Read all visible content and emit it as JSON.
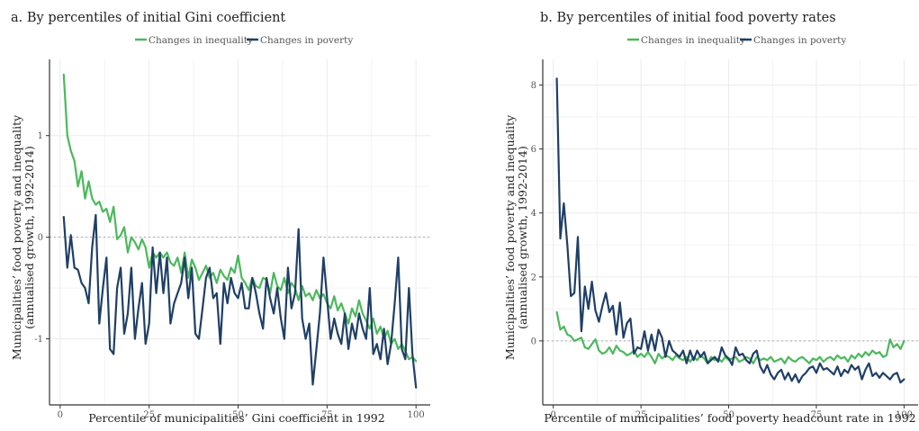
{
  "chart_data": [
    {
      "type": "line",
      "title": "a. By percentiles of initial Gini coefficient",
      "xlabel": "Percentile of municipalities’ Gini coefficient in 1992",
      "ylabel": [
        "Municipalities’ food poverty and inequality",
        "(annualised growth, 1992-2014)"
      ],
      "xlim": [
        -3,
        104
      ],
      "ylim": [
        -1.65,
        1.75
      ],
      "xticks": [
        0,
        25,
        50,
        75,
        100
      ],
      "xtick_labels": [
        "0",
        "25",
        "50",
        "75",
        "100"
      ],
      "yticks": [
        -1,
        0,
        1
      ],
      "ytick_labels": [
        "-1",
        "0",
        "1"
      ],
      "reference_line": 0,
      "grid": true,
      "legend_position": "top",
      "series": [
        {
          "name": "Changes in inequality",
          "color": "#4cb85c",
          "x": [
            1,
            2,
            3,
            4,
            5,
            6,
            7,
            8,
            9,
            10,
            11,
            12,
            13,
            14,
            15,
            16,
            17,
            18,
            19,
            20,
            21,
            22,
            23,
            24,
            25,
            26,
            27,
            28,
            29,
            30,
            31,
            32,
            33,
            34,
            35,
            36,
            37,
            38,
            39,
            40,
            41,
            42,
            43,
            44,
            45,
            46,
            47,
            48,
            49,
            50,
            51,
            52,
            53,
            54,
            55,
            56,
            57,
            58,
            59,
            60,
            61,
            62,
            63,
            64,
            65,
            66,
            67,
            68,
            69,
            70,
            71,
            72,
            73,
            74,
            75,
            76,
            77,
            78,
            79,
            80,
            81,
            82,
            83,
            84,
            85,
            86,
            87,
            88,
            89,
            90,
            91,
            92,
            93,
            94,
            95,
            96,
            97,
            98,
            99,
            100
          ],
          "y": [
            1.6,
            1.0,
            0.85,
            0.75,
            0.5,
            0.65,
            0.38,
            0.55,
            0.38,
            0.32,
            0.35,
            0.25,
            0.28,
            0.15,
            0.3,
            -0.02,
            0.02,
            0.1,
            -0.15,
            0.0,
            -0.05,
            -0.12,
            -0.02,
            -0.1,
            -0.3,
            -0.15,
            -0.2,
            -0.15,
            -0.2,
            -0.15,
            -0.25,
            -0.28,
            -0.2,
            -0.35,
            -0.15,
            -0.4,
            -0.22,
            -0.3,
            -0.42,
            -0.35,
            -0.28,
            -0.4,
            -0.35,
            -0.45,
            -0.32,
            -0.38,
            -0.42,
            -0.3,
            -0.35,
            -0.18,
            -0.4,
            -0.45,
            -0.52,
            -0.4,
            -0.48,
            -0.5,
            -0.4,
            -0.42,
            -0.55,
            -0.35,
            -0.48,
            -0.52,
            -0.4,
            -0.55,
            -0.45,
            -0.5,
            -0.62,
            -0.48,
            -0.58,
            -0.55,
            -0.62,
            -0.52,
            -0.6,
            -0.56,
            -0.65,
            -0.7,
            -0.58,
            -0.72,
            -0.65,
            -0.75,
            -0.85,
            -0.7,
            -0.78,
            -0.62,
            -0.75,
            -0.82,
            -0.9,
            -0.8,
            -0.95,
            -0.88,
            -1.0,
            -0.92,
            -1.05,
            -1.0,
            -1.1,
            -1.05,
            -1.12,
            -1.2,
            -1.18,
            -1.22
          ]
        },
        {
          "name": "Changes in poverty",
          "color": "#1f3f66",
          "x": [
            1,
            2,
            3,
            4,
            5,
            6,
            7,
            8,
            9,
            10,
            11,
            12,
            13,
            14,
            15,
            16,
            17,
            18,
            19,
            20,
            21,
            22,
            23,
            24,
            25,
            26,
            27,
            28,
            29,
            30,
            31,
            32,
            33,
            34,
            35,
            36,
            37,
            38,
            39,
            40,
            41,
            42,
            43,
            44,
            45,
            46,
            47,
            48,
            49,
            50,
            51,
            52,
            53,
            54,
            55,
            56,
            57,
            58,
            59,
            60,
            61,
            62,
            63,
            64,
            65,
            66,
            67,
            68,
            69,
            70,
            71,
            72,
            73,
            74,
            75,
            76,
            77,
            78,
            79,
            80,
            81,
            82,
            83,
            84,
            85,
            86,
            87,
            88,
            89,
            90,
            91,
            92,
            93,
            94,
            95,
            96,
            97,
            98,
            99,
            100
          ],
          "y": [
            0.2,
            -0.3,
            0.02,
            -0.3,
            -0.32,
            -0.45,
            -0.5,
            -0.65,
            -0.1,
            0.22,
            -0.85,
            -0.5,
            -0.2,
            -1.1,
            -1.15,
            -0.5,
            -0.3,
            -0.95,
            -0.75,
            -0.3,
            -1.0,
            -0.7,
            -0.45,
            -1.05,
            -0.85,
            -0.1,
            -0.55,
            -0.15,
            -0.55,
            -0.2,
            -0.85,
            -0.65,
            -0.55,
            -0.45,
            -0.2,
            -0.6,
            -0.3,
            -0.95,
            -1.0,
            -0.7,
            -0.4,
            -0.3,
            -0.6,
            -0.55,
            -1.05,
            -0.45,
            -0.65,
            -0.4,
            -0.55,
            -0.6,
            -0.45,
            -0.7,
            -0.7,
            -0.4,
            -0.55,
            -0.75,
            -0.9,
            -0.4,
            -0.6,
            -0.75,
            -0.5,
            -0.8,
            -1.0,
            -0.3,
            -0.7,
            -0.55,
            0.08,
            -0.8,
            -1.0,
            -0.85,
            -1.45,
            -1.1,
            -0.75,
            -0.2,
            -0.6,
            -1.0,
            -0.8,
            -0.95,
            -1.05,
            -0.75,
            -1.1,
            -0.85,
            -1.0,
            -0.75,
            -0.9,
            -1.0,
            -0.5,
            -1.15,
            -1.05,
            -1.2,
            -0.9,
            -1.25,
            -1.05,
            -0.65,
            -0.2,
            -1.1,
            -1.2,
            -0.5,
            -1.15,
            -1.48
          ]
        }
      ]
    },
    {
      "type": "line",
      "title": "b. By percentiles of initial food poverty rates",
      "xlabel": "Percentile of municipalities’ food poverty headcount rate in 1992",
      "ylabel": [
        "Municipalities’ food poverty and inequality",
        "(annualised growth, 1992-2014)"
      ],
      "xlim": [
        -3,
        104
      ],
      "ylim": [
        -2.0,
        8.8
      ],
      "xticks": [
        0,
        25,
        50,
        75,
        100
      ],
      "xtick_labels": [
        "0",
        "25",
        "50",
        "75",
        "100"
      ],
      "yticks": [
        0,
        2,
        4,
        6,
        8
      ],
      "ytick_labels": [
        "0",
        "2",
        "4",
        "6",
        "8"
      ],
      "reference_line": 0,
      "grid": true,
      "legend_position": "top",
      "series": [
        {
          "name": "Changes in inequality",
          "color": "#4cb85c",
          "x": [
            1,
            2,
            3,
            4,
            5,
            6,
            7,
            8,
            9,
            10,
            11,
            12,
            13,
            14,
            15,
            16,
            17,
            18,
            19,
            20,
            21,
            22,
            23,
            24,
            25,
            26,
            27,
            28,
            29,
            30,
            31,
            32,
            33,
            34,
            35,
            36,
            37,
            38,
            39,
            40,
            41,
            42,
            43,
            44,
            45,
            46,
            47,
            48,
            49,
            50,
            51,
            52,
            53,
            54,
            55,
            56,
            57,
            58,
            59,
            60,
            61,
            62,
            63,
            64,
            65,
            66,
            67,
            68,
            69,
            70,
            71,
            72,
            73,
            74,
            75,
            76,
            77,
            78,
            79,
            80,
            81,
            82,
            83,
            84,
            85,
            86,
            87,
            88,
            89,
            90,
            91,
            92,
            93,
            94,
            95,
            96,
            97,
            98,
            99,
            100
          ],
          "y": [
            0.9,
            0.35,
            0.45,
            0.2,
            0.15,
            0.0,
            0.05,
            0.1,
            -0.2,
            -0.25,
            -0.1,
            0.05,
            -0.3,
            -0.4,
            -0.35,
            -0.2,
            -0.4,
            -0.15,
            -0.3,
            -0.35,
            -0.45,
            -0.4,
            -0.3,
            -0.5,
            -0.4,
            -0.5,
            -0.35,
            -0.5,
            -0.7,
            -0.4,
            -0.55,
            -0.45,
            -0.5,
            -0.6,
            -0.45,
            -0.55,
            -0.6,
            -0.5,
            -0.65,
            -0.5,
            -0.6,
            -0.45,
            -0.55,
            -0.7,
            -0.5,
            -0.6,
            -0.55,
            -0.65,
            -0.5,
            -0.6,
            -0.55,
            -0.5,
            -0.65,
            -0.6,
            -0.5,
            -0.55,
            -0.7,
            -0.5,
            -0.6,
            -0.55,
            -0.6,
            -0.5,
            -0.65,
            -0.6,
            -0.55,
            -0.7,
            -0.5,
            -0.6,
            -0.65,
            -0.55,
            -0.5,
            -0.6,
            -0.7,
            -0.55,
            -0.6,
            -0.5,
            -0.65,
            -0.55,
            -0.5,
            -0.6,
            -0.45,
            -0.55,
            -0.5,
            -0.65,
            -0.45,
            -0.55,
            -0.4,
            -0.5,
            -0.35,
            -0.45,
            -0.3,
            -0.4,
            -0.35,
            -0.5,
            -0.45,
            0.05,
            -0.2,
            -0.1,
            -0.25,
            0.0
          ]
        },
        {
          "name": "Changes in poverty",
          "color": "#1f3f66",
          "x": [
            1,
            2,
            3,
            4,
            5,
            6,
            7,
            8,
            9,
            10,
            11,
            12,
            13,
            14,
            15,
            16,
            17,
            18,
            19,
            20,
            21,
            22,
            23,
            24,
            25,
            26,
            27,
            28,
            29,
            30,
            31,
            32,
            33,
            34,
            35,
            36,
            37,
            38,
            39,
            40,
            41,
            42,
            43,
            44,
            45,
            46,
            47,
            48,
            49,
            50,
            51,
            52,
            53,
            54,
            55,
            56,
            57,
            58,
            59,
            60,
            61,
            62,
            63,
            64,
            65,
            66,
            67,
            68,
            69,
            70,
            71,
            72,
            73,
            74,
            75,
            76,
            77,
            78,
            79,
            80,
            81,
            82,
            83,
            84,
            85,
            86,
            87,
            88,
            89,
            90,
            91,
            92,
            93,
            94,
            95,
            96,
            97,
            98,
            99,
            100
          ],
          "y": [
            8.2,
            3.2,
            4.3,
            3.0,
            1.4,
            1.5,
            3.25,
            0.3,
            1.7,
            1.0,
            1.85,
            0.95,
            0.6,
            1.1,
            1.5,
            0.9,
            1.1,
            0.2,
            1.2,
            0.1,
            0.55,
            0.7,
            -0.4,
            -0.2,
            -0.25,
            0.3,
            -0.3,
            0.2,
            -0.3,
            0.35,
            0.1,
            -0.5,
            0.0,
            -0.3,
            -0.4,
            -0.5,
            -0.3,
            -0.7,
            -0.3,
            -0.6,
            -0.3,
            -0.5,
            -0.35,
            -0.7,
            -0.6,
            -0.5,
            -0.65,
            -0.2,
            -0.45,
            -0.55,
            -0.75,
            -0.2,
            -0.45,
            -0.4,
            -0.6,
            -0.7,
            -0.4,
            -0.3,
            -0.8,
            -1.0,
            -0.75,
            -1.05,
            -1.2,
            -1.0,
            -0.9,
            -1.2,
            -1.0,
            -1.25,
            -1.05,
            -1.3,
            -1.1,
            -1.0,
            -0.85,
            -0.8,
            -1.0,
            -0.7,
            -0.9,
            -0.85,
            -0.95,
            -1.05,
            -0.8,
            -1.1,
            -0.9,
            -1.0,
            -0.75,
            -0.9,
            -0.8,
            -1.2,
            -0.9,
            -0.7,
            -1.1,
            -1.0,
            -1.15,
            -1.0,
            -1.1,
            -1.2,
            -1.05,
            -1.0,
            -1.3,
            -1.2
          ]
        }
      ]
    }
  ]
}
